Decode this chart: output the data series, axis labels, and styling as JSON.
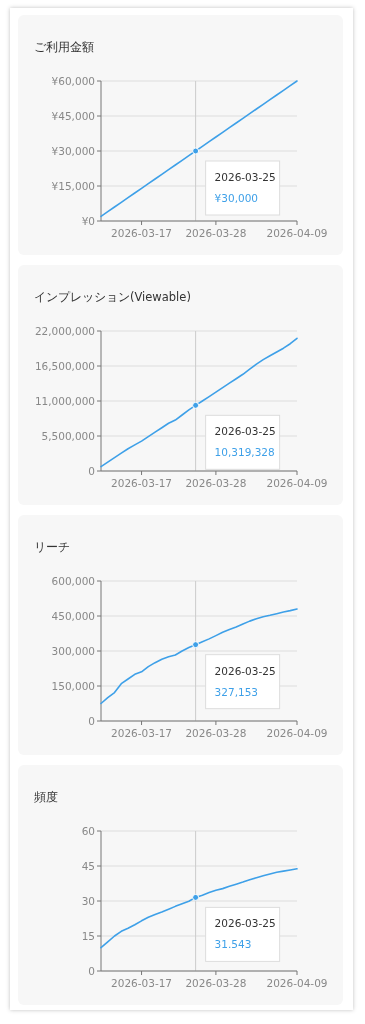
{
  "chart_data": [
    {
      "type": "line",
      "title": "ご利用金額",
      "x": [
        "2026-03-11",
        "2026-03-12",
        "2026-03-13",
        "2026-03-14",
        "2026-03-15",
        "2026-03-16",
        "2026-03-17",
        "2026-03-18",
        "2026-03-19",
        "2026-03-20",
        "2026-03-21",
        "2026-03-22",
        "2026-03-23",
        "2026-03-24",
        "2026-03-25",
        "2026-03-26",
        "2026-03-27",
        "2026-03-28",
        "2026-03-29",
        "2026-03-30",
        "2026-03-31",
        "2026-04-01",
        "2026-04-02",
        "2026-04-03",
        "2026-04-04",
        "2026-04-05",
        "2026-04-06",
        "2026-04-07",
        "2026-04-08",
        "2026-04-09"
      ],
      "series": [
        {
          "color": "#3ea0e8",
          "values": [
            2000,
            4000,
            6000,
            8000,
            10000,
            12000,
            14000,
            16000,
            18000,
            20000,
            22000,
            24000,
            26000,
            28000,
            30000,
            32000,
            34000,
            36000,
            38000,
            40000,
            42000,
            44000,
            46000,
            48000,
            50000,
            52000,
            54000,
            56000,
            58000,
            60000
          ]
        },
        {
          "type": "scatter",
          "marker": "circle",
          "color": "#3ea0e8",
          "x": [
            "2026-03-25"
          ],
          "values": [
            30000
          ]
        }
      ],
      "xlim": [
        "2026-03-11",
        "2026-04-09"
      ],
      "xticks": [
        "2026-03-17",
        "2026-03-28",
        "2026-04-09"
      ],
      "ylim": [
        0,
        60000
      ],
      "yticks": [
        {
          "value": 0,
          "label": "¥0"
        },
        {
          "value": 15000,
          "label": "¥15,000"
        },
        {
          "value": 30000,
          "label": "¥30,000"
        },
        {
          "value": 45000,
          "label": "¥45,000"
        },
        {
          "value": 60000,
          "label": "¥60,000"
        }
      ],
      "grid": "y",
      "ref_lines": [
        {
          "axis": "x",
          "value": "2026-03-25",
          "color": "#cccccc"
        }
      ],
      "annotations": [
        "2026-03-25",
        "¥30,000"
      ]
    },
    {
      "type": "line",
      "title": "インプレッション(Viewable)",
      "x": [
        "2026-03-11",
        "2026-03-12",
        "2026-03-13",
        "2026-03-14",
        "2026-03-15",
        "2026-03-16",
        "2026-03-17",
        "2026-03-18",
        "2026-03-19",
        "2026-03-20",
        "2026-03-21",
        "2026-03-22",
        "2026-03-23",
        "2026-03-24",
        "2026-03-25",
        "2026-03-26",
        "2026-03-27",
        "2026-03-28",
        "2026-03-29",
        "2026-03-30",
        "2026-03-31",
        "2026-04-01",
        "2026-04-02",
        "2026-04-03",
        "2026-04-04",
        "2026-04-05",
        "2026-04-06",
        "2026-04-07",
        "2026-04-08",
        "2026-04-09"
      ],
      "series": [
        {
          "color": "#3ea0e8",
          "values": [
            680000,
            1400000,
            2100000,
            2800000,
            3500000,
            4100000,
            4700000,
            5400000,
            6100000,
            6800000,
            7500000,
            8000000,
            8800000,
            9600000,
            10319328,
            11000000,
            11700000,
            12400000,
            13100000,
            13800000,
            14500000,
            15200000,
            16000000,
            16800000,
            17500000,
            18100000,
            18700000,
            19300000,
            20000000,
            20850000
          ]
        },
        {
          "type": "scatter",
          "marker": "circle",
          "color": "#3ea0e8",
          "x": [
            "2026-03-25"
          ],
          "values": [
            10319328
          ]
        }
      ],
      "xlim": [
        "2026-03-11",
        "2026-04-09"
      ],
      "xticks": [
        "2026-03-17",
        "2026-03-28",
        "2026-04-09"
      ],
      "ylim": [
        0,
        22000000
      ],
      "yticks": [
        {
          "value": 0,
          "label": "0"
        },
        {
          "value": 5500000,
          "label": "5,500,000"
        },
        {
          "value": 11000000,
          "label": "11,000,000"
        },
        {
          "value": 16500000,
          "label": "16,500,000"
        },
        {
          "value": 22000000,
          "label": "22,000,000"
        }
      ],
      "grid": "y",
      "ref_lines": [
        {
          "axis": "x",
          "value": "2026-03-25",
          "color": "#cccccc"
        }
      ],
      "annotations": [
        "2026-03-25",
        "10,319,328"
      ]
    },
    {
      "type": "line",
      "title": "リーチ",
      "x": [
        "2026-03-11",
        "2026-03-12",
        "2026-03-13",
        "2026-03-14",
        "2026-03-15",
        "2026-03-16",
        "2026-03-17",
        "2026-03-18",
        "2026-03-19",
        "2026-03-20",
        "2026-03-21",
        "2026-03-22",
        "2026-03-23",
        "2026-03-24",
        "2026-03-25",
        "2026-03-26",
        "2026-03-27",
        "2026-03-28",
        "2026-03-29",
        "2026-03-30",
        "2026-03-31",
        "2026-04-01",
        "2026-04-02",
        "2026-04-03",
        "2026-04-04",
        "2026-04-05",
        "2026-04-06",
        "2026-04-07",
        "2026-04-08",
        "2026-04-09"
      ],
      "series": [
        {
          "color": "#3ea0e8",
          "values": [
            75000,
            100000,
            122000,
            160000,
            180000,
            200000,
            211000,
            233000,
            250000,
            265000,
            275000,
            283000,
            300000,
            315000,
            327153,
            340000,
            352000,
            366000,
            380000,
            392000,
            403000,
            416000,
            428000,
            438000,
            447000,
            453000,
            460000,
            467000,
            473000,
            480000
          ]
        },
        {
          "type": "scatter",
          "marker": "circle",
          "color": "#3ea0e8",
          "x": [
            "2026-03-25"
          ],
          "values": [
            327153
          ]
        }
      ],
      "xlim": [
        "2026-03-11",
        "2026-04-09"
      ],
      "xticks": [
        "2026-03-17",
        "2026-03-28",
        "2026-04-09"
      ],
      "ylim": [
        0,
        600000
      ],
      "yticks": [
        {
          "value": 0,
          "label": "0"
        },
        {
          "value": 150000,
          "label": "150,000"
        },
        {
          "value": 300000,
          "label": "300,000"
        },
        {
          "value": 450000,
          "label": "450,000"
        },
        {
          "value": 600000,
          "label": "600,000"
        }
      ],
      "grid": "y",
      "ref_lines": [
        {
          "axis": "x",
          "value": "2026-03-25",
          "color": "#cccccc"
        }
      ],
      "annotations": [
        "2026-03-25",
        "327,153"
      ]
    },
    {
      "type": "line",
      "title": "頻度",
      "x": [
        "2026-03-11",
        "2026-03-12",
        "2026-03-13",
        "2026-03-14",
        "2026-03-15",
        "2026-03-16",
        "2026-03-17",
        "2026-03-18",
        "2026-03-19",
        "2026-03-20",
        "2026-03-21",
        "2026-03-22",
        "2026-03-23",
        "2026-03-24",
        "2026-03-25",
        "2026-03-26",
        "2026-03-27",
        "2026-03-28",
        "2026-03-29",
        "2026-03-30",
        "2026-03-31",
        "2026-04-01",
        "2026-04-02",
        "2026-04-03",
        "2026-04-04",
        "2026-04-05",
        "2026-04-06",
        "2026-04-07",
        "2026-04-08",
        "2026-04-09"
      ],
      "series": [
        {
          "color": "#3ea0e8",
          "values": [
            10,
            12.5,
            15,
            17,
            18.3,
            19.8,
            21.5,
            23,
            24.2,
            25.3,
            26.5,
            27.7,
            28.8,
            29.9,
            31.543,
            32.5,
            33.6,
            34.6,
            35.3,
            36.3,
            37.2,
            38.1,
            39.1,
            40,
            40.8,
            41.6,
            42.3,
            42.8,
            43.3,
            43.8
          ]
        },
        {
          "type": "scatter",
          "marker": "circle",
          "color": "#3ea0e8",
          "x": [
            "2026-03-25"
          ],
          "values": [
            31.543
          ]
        }
      ],
      "xlim": [
        "2026-03-11",
        "2026-04-09"
      ],
      "xticks": [
        "2026-03-17",
        "2026-03-28",
        "2026-04-09"
      ],
      "ylim": [
        0,
        60
      ],
      "yticks": [
        0,
        15,
        30,
        45,
        60
      ],
      "grid": "y",
      "ref_lines": [
        {
          "axis": "x",
          "value": "2026-03-25",
          "color": "#cccccc"
        }
      ],
      "annotations": [
        "2026-03-25",
        "31.543"
      ]
    }
  ]
}
